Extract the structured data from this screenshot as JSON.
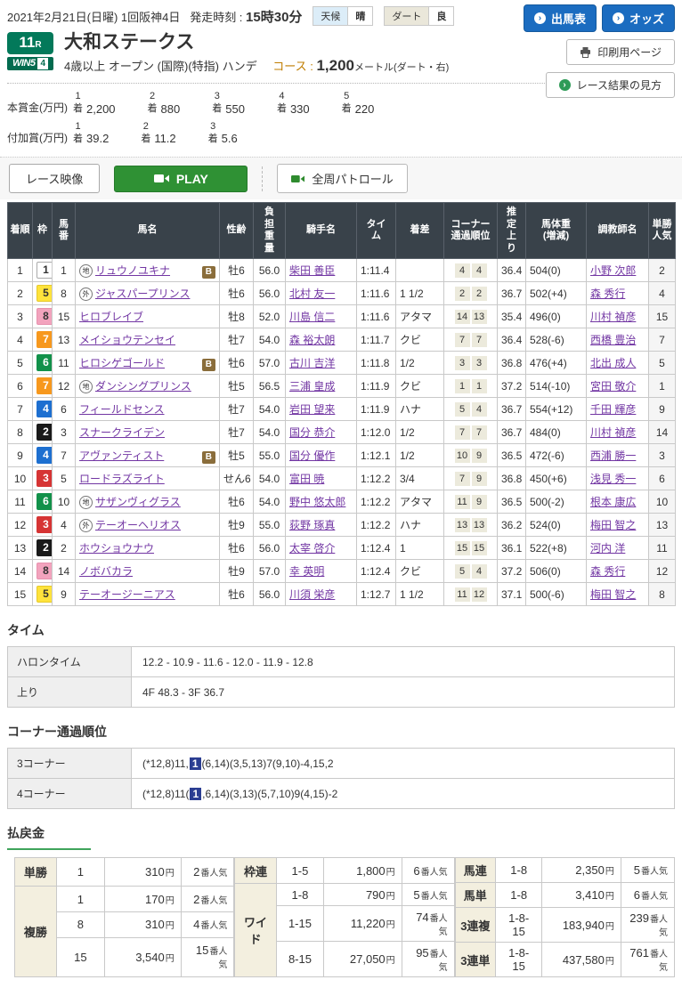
{
  "header": {
    "date_line": "2021年2月21日(日曜) 1回阪神4日",
    "start_label": "発走時刻 :",
    "start_time": "15時30分",
    "weather_label": "天候",
    "weather_value": "晴",
    "track_label": "ダート",
    "track_value": "良",
    "entries_button": "出馬表",
    "odds_button": "オッズ",
    "print_button": "印刷用ページ",
    "guide_button": "レース結果の見方",
    "race_number": "11",
    "race_number_unit": "R",
    "win5_label": "WIN5",
    "win5_number": "4",
    "race_name": "大和ステークス",
    "race_conditions": "4歳以上 オープン (国際)(特指) ハンデ",
    "course_label": "コース :",
    "course_value": "1,200",
    "course_unit": "メートル(ダート・右)",
    "arrow_icon": "›"
  },
  "prizes": {
    "main_label": "本賞金(万円)",
    "added_label": "付加賞(万円)",
    "place_suffix": "着",
    "main": [
      {
        "place": "1",
        "amount": "2,200"
      },
      {
        "place": "2",
        "amount": "880"
      },
      {
        "place": "3",
        "amount": "550"
      },
      {
        "place": "4",
        "amount": "330"
      },
      {
        "place": "5",
        "amount": "220"
      }
    ],
    "added": [
      {
        "place": "1",
        "amount": "39.2"
      },
      {
        "place": "2",
        "amount": "11.2"
      },
      {
        "place": "3",
        "amount": "5.6"
      }
    ]
  },
  "video": {
    "race_video_button": "レース映像",
    "play_button": "PLAY",
    "patrol_button": "全周パトロール"
  },
  "frame_colors": {
    "1": {
      "bg": "#ffffff",
      "fg": "#333333",
      "bd": "#aaaaaa"
    },
    "2": {
      "bg": "#1a1a1a",
      "fg": "#ffffff",
      "bd": "#1a1a1a"
    },
    "3": {
      "bg": "#d63434",
      "fg": "#ffffff",
      "bd": "#d63434"
    },
    "4": {
      "bg": "#1d6fd0",
      "fg": "#ffffff",
      "bd": "#1d6fd0"
    },
    "5": {
      "bg": "#ffe33c",
      "fg": "#333333",
      "bd": "#e6c92a"
    },
    "6": {
      "bg": "#12914a",
      "fg": "#ffffff",
      "bd": "#12914a"
    },
    "7": {
      "bg": "#f7981d",
      "fg": "#ffffff",
      "bd": "#f7981d"
    },
    "8": {
      "bg": "#f2a3bd",
      "fg": "#333333",
      "bd": "#e891ae"
    }
  },
  "results": {
    "b_label": "B",
    "headers": [
      "着順",
      "枠",
      "馬\n番",
      "馬名",
      "性齢",
      "負\n担\n重\n量",
      "騎手名",
      "タイ\nム",
      "着差",
      "コーナー\n通過順位",
      "推\n定\n上\nり",
      "馬体重\n(増減)",
      "調教師名",
      "単勝\n人気"
    ],
    "rows": [
      {
        "rank": "1",
        "waku": "1",
        "num": "1",
        "mark": "地",
        "name": "リュウノユキナ",
        "b": true,
        "sexage": "牡6",
        "weight": "56.0",
        "jockey": "柴田 善臣",
        "time": "1:11.4",
        "margin": "",
        "corners": [
          "4",
          "4"
        ],
        "agari": "36.4",
        "body": "504(0)",
        "trainer": "小野 次郎",
        "pop": "2"
      },
      {
        "rank": "2",
        "waku": "5",
        "num": "8",
        "mark": "外",
        "name": "ジャスパープリンス",
        "b": false,
        "sexage": "牡6",
        "weight": "56.0",
        "jockey": "北村 友一",
        "time": "1:11.6",
        "margin": "1 1/2",
        "corners": [
          "2",
          "2"
        ],
        "agari": "36.7",
        "body": "502(+4)",
        "trainer": "森 秀行",
        "pop": "4"
      },
      {
        "rank": "3",
        "waku": "8",
        "num": "15",
        "mark": "",
        "name": "ヒロブレイブ",
        "b": false,
        "sexage": "牡8",
        "weight": "52.0",
        "jockey": "川島 信二",
        "time": "1:11.6",
        "margin": "アタマ",
        "corners": [
          "14",
          "13"
        ],
        "agari": "35.4",
        "body": "496(0)",
        "trainer": "川村 禎彦",
        "pop": "15"
      },
      {
        "rank": "4",
        "waku": "7",
        "num": "13",
        "mark": "",
        "name": "メイショウテンセイ",
        "b": false,
        "sexage": "牡7",
        "weight": "54.0",
        "jockey": "森 裕太朗",
        "time": "1:11.7",
        "margin": "クビ",
        "corners": [
          "7",
          "7"
        ],
        "agari": "36.4",
        "body": "528(-6)",
        "trainer": "西橋 豊治",
        "pop": "7"
      },
      {
        "rank": "5",
        "waku": "6",
        "num": "11",
        "mark": "",
        "name": "ヒロシゲゴールド",
        "b": true,
        "sexage": "牡6",
        "weight": "57.0",
        "jockey": "古川 吉洋",
        "time": "1:11.8",
        "margin": "1/2",
        "corners": [
          "3",
          "3"
        ],
        "agari": "36.8",
        "body": "476(+4)",
        "trainer": "北出 成人",
        "pop": "5"
      },
      {
        "rank": "6",
        "waku": "7",
        "num": "12",
        "mark": "地",
        "name": "ダンシングプリンス",
        "b": false,
        "sexage": "牡5",
        "weight": "56.5",
        "jockey": "三浦 皇成",
        "time": "1:11.9",
        "margin": "クビ",
        "corners": [
          "1",
          "1"
        ],
        "agari": "37.2",
        "body": "514(-10)",
        "trainer": "宮田 敬介",
        "pop": "1"
      },
      {
        "rank": "7",
        "waku": "4",
        "num": "6",
        "mark": "",
        "name": "フィールドセンス",
        "b": false,
        "sexage": "牡7",
        "weight": "54.0",
        "jockey": "岩田 望来",
        "time": "1:11.9",
        "margin": "ハナ",
        "corners": [
          "5",
          "4"
        ],
        "agari": "36.7",
        "body": "554(+12)",
        "trainer": "千田 輝彦",
        "pop": "9"
      },
      {
        "rank": "8",
        "waku": "2",
        "num": "3",
        "mark": "",
        "name": "スナークライデン",
        "b": false,
        "sexage": "牡7",
        "weight": "54.0",
        "jockey": "国分 恭介",
        "time": "1:12.0",
        "margin": "1/2",
        "corners": [
          "7",
          "7"
        ],
        "agari": "36.7",
        "body": "484(0)",
        "trainer": "川村 禎彦",
        "pop": "14"
      },
      {
        "rank": "9",
        "waku": "4",
        "num": "7",
        "mark": "",
        "name": "アヴァンティスト",
        "b": true,
        "sexage": "牡5",
        "weight": "55.0",
        "jockey": "国分 優作",
        "time": "1:12.1",
        "margin": "1/2",
        "corners": [
          "10",
          "9"
        ],
        "agari": "36.5",
        "body": "472(-6)",
        "trainer": "西浦 勝一",
        "pop": "3"
      },
      {
        "rank": "10",
        "waku": "3",
        "num": "5",
        "mark": "",
        "name": "ロードラズライト",
        "b": false,
        "sexage": "せん6",
        "weight": "54.0",
        "jockey": "富田 暁",
        "time": "1:12.2",
        "margin": "3/4",
        "corners": [
          "7",
          "9"
        ],
        "agari": "36.8",
        "body": "450(+6)",
        "trainer": "浅見 秀一",
        "pop": "6"
      },
      {
        "rank": "11",
        "waku": "6",
        "num": "10",
        "mark": "地",
        "name": "サザンヴィグラス",
        "b": false,
        "sexage": "牡6",
        "weight": "54.0",
        "jockey": "野中 悠太郎",
        "time": "1:12.2",
        "margin": "アタマ",
        "corners": [
          "11",
          "9"
        ],
        "agari": "36.5",
        "body": "500(-2)",
        "trainer": "根本 康広",
        "pop": "10"
      },
      {
        "rank": "12",
        "waku": "3",
        "num": "4",
        "mark": "外",
        "name": "テーオーヘリオス",
        "b": false,
        "sexage": "牡9",
        "weight": "55.0",
        "jockey": "荻野 琢真",
        "time": "1:12.2",
        "margin": "ハナ",
        "corners": [
          "13",
          "13"
        ],
        "agari": "36.2",
        "body": "524(0)",
        "trainer": "梅田 智之",
        "pop": "13"
      },
      {
        "rank": "13",
        "waku": "2",
        "num": "2",
        "mark": "",
        "name": "ホウショウナウ",
        "b": false,
        "sexage": "牡6",
        "weight": "56.0",
        "jockey": "太宰 啓介",
        "time": "1:12.4",
        "margin": "1",
        "corners": [
          "15",
          "15"
        ],
        "agari": "36.1",
        "body": "522(+8)",
        "trainer": "河内 洋",
        "pop": "11"
      },
      {
        "rank": "14",
        "waku": "8",
        "num": "14",
        "mark": "",
        "name": "ノボバカラ",
        "b": false,
        "sexage": "牡9",
        "weight": "57.0",
        "jockey": "幸 英明",
        "time": "1:12.4",
        "margin": "クビ",
        "corners": [
          "5",
          "4"
        ],
        "agari": "37.2",
        "body": "506(0)",
        "trainer": "森 秀行",
        "pop": "12"
      },
      {
        "rank": "15",
        "waku": "5",
        "num": "9",
        "mark": "",
        "name": "テーオージーニアス",
        "b": false,
        "sexage": "牡6",
        "weight": "56.0",
        "jockey": "川須 栄彦",
        "time": "1:12.7",
        "margin": "1 1/2",
        "corners": [
          "11",
          "12"
        ],
        "agari": "37.1",
        "body": "500(-6)",
        "trainer": "梅田 智之",
        "pop": "8"
      }
    ]
  },
  "time_section": {
    "title": "タイム",
    "rows": [
      {
        "label": "ハロンタイム",
        "value": "12.2 - 10.9 - 11.6 - 12.0 - 11.9 - 12.8"
      },
      {
        "label": "上り",
        "value": "4F 48.3 - 3F 36.7"
      }
    ]
  },
  "corner_section": {
    "title": "コーナー通過順位",
    "rows": [
      {
        "label": "3コーナー",
        "before": "(*12,8)11,",
        "highlight": "1",
        "after": "(6,14)(3,5,13)7(9,10)-4,15,2"
      },
      {
        "label": "4コーナー",
        "before": "(*12,8)11(",
        "highlight": "1",
        "after": ",6,14)(3,13)(5,7,10)9(4,15)-2"
      }
    ]
  },
  "payout": {
    "title": "払戻金",
    "yen_suffix": "円",
    "pop_suffix": "番人気",
    "groups": [
      {
        "rows": [
          {
            "type": "単勝",
            "rowspan": 1,
            "combo": "1",
            "amount": "310",
            "pop": "2"
          },
          {
            "type": "複勝",
            "rowspan": 3,
            "combo": "1",
            "amount": "170",
            "pop": "2"
          },
          {
            "combo": "8",
            "amount": "310",
            "pop": "4"
          },
          {
            "combo": "15",
            "amount": "3,540",
            "pop": "15"
          }
        ]
      },
      {
        "rows": [
          {
            "type": "枠連",
            "rowspan": 1,
            "combo": "1-5",
            "amount": "1,800",
            "pop": "6"
          },
          {
            "type": "ワイド",
            "rowspan": 3,
            "combo": "1-8",
            "amount": "790",
            "pop": "5"
          },
          {
            "combo": "1-15",
            "amount": "11,220",
            "pop": "74"
          },
          {
            "combo": "8-15",
            "amount": "27,050",
            "pop": "95"
          }
        ]
      },
      {
        "rows": [
          {
            "type": "馬連",
            "rowspan": 1,
            "combo": "1-8",
            "amount": "2,350",
            "pop": "5"
          },
          {
            "type": "馬単",
            "rowspan": 1,
            "combo": "1-8",
            "amount": "3,410",
            "pop": "6"
          },
          {
            "type": "3連複",
            "rowspan": 1,
            "combo": "1-8-15",
            "amount": "183,940",
            "pop": "239"
          },
          {
            "type": "3連単",
            "rowspan": 1,
            "combo": "1-8-15",
            "amount": "437,580",
            "pop": "761"
          }
        ]
      }
    ]
  }
}
